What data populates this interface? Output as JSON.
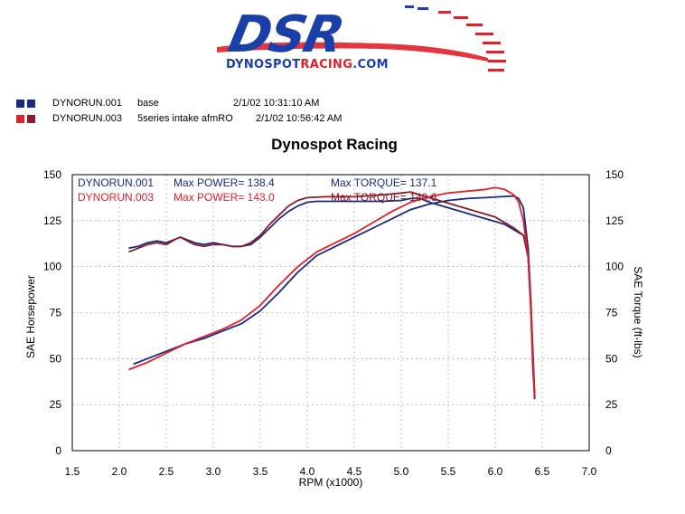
{
  "logo": {
    "main_text": "DSR",
    "sub_text_prefix": "DYNOSPOT",
    "sub_text_accent": "RACING",
    "sub_text_suffix": ".COM",
    "primary_color": "#1a3fa8",
    "accent_color": "#e0202a"
  },
  "legend": [
    {
      "run": "DYNORUN.001",
      "description": "base",
      "timestamp": "2/1/02 10:31:10 AM",
      "colors": [
        "#1a2a80",
        "#1a2a80"
      ]
    },
    {
      "run": "DYNORUN.003",
      "description": "5series intake afmRO",
      "timestamp": "2/1/02 10:56:42 AM",
      "colors": [
        "#e0202a",
        "#8b1a2a"
      ]
    }
  ],
  "chart_data": {
    "type": "line",
    "title": "Dynospot Racing",
    "xlabel": "RPM (x1000)",
    "ylabel": "SAE Horsepower",
    "y2label": "SAE Torque (ft-lbs)",
    "xlim": [
      1.5,
      7.0
    ],
    "ylim": [
      0,
      150
    ],
    "y2lim": [
      0,
      150
    ],
    "x_ticks": [
      "1.5",
      "2.0",
      "2.5",
      "3.0",
      "3.5",
      "4.0",
      "4.5",
      "5.0",
      "5.5",
      "6.0",
      "6.5",
      "7.0"
    ],
    "y_ticks": [
      "0",
      "25",
      "50",
      "75",
      "100",
      "125",
      "150"
    ],
    "y2_ticks": [
      "0",
      "25",
      "50",
      "75",
      "100",
      "125",
      "150"
    ],
    "grid": true,
    "annotations": {
      "run1_label": "DYNORUN.001",
      "run1_power": "Max POWER= 138.4",
      "run1_torque": "Max TORQUE= 137.1",
      "run3_label": "DYNORUN.003",
      "run3_power": "Max POWER= 143.0",
      "run3_torque": "Max TORQUE= 140.6"
    },
    "series": [
      {
        "name": "DYNORUN.001",
        "metric": "torque",
        "color": "#1a2a80",
        "points": [
          [
            2.1,
            110
          ],
          [
            2.2,
            111
          ],
          [
            2.3,
            113
          ],
          [
            2.4,
            114
          ],
          [
            2.5,
            113
          ],
          [
            2.6,
            115
          ],
          [
            2.65,
            116
          ],
          [
            2.8,
            113
          ],
          [
            2.9,
            112
          ],
          [
            3.0,
            113
          ],
          [
            3.1,
            112
          ],
          [
            3.2,
            111
          ],
          [
            3.3,
            111
          ],
          [
            3.4,
            112
          ],
          [
            3.5,
            116
          ],
          [
            3.6,
            121
          ],
          [
            3.7,
            126
          ],
          [
            3.8,
            130
          ],
          [
            3.9,
            133
          ],
          [
            4.0,
            135
          ],
          [
            4.1,
            135.5
          ],
          [
            4.3,
            135.5
          ],
          [
            4.5,
            135.5
          ],
          [
            4.8,
            135.5
          ],
          [
            5.0,
            136
          ],
          [
            5.1,
            137
          ],
          [
            5.2,
            137.1
          ],
          [
            5.3,
            135
          ],
          [
            5.5,
            132
          ],
          [
            5.7,
            129
          ],
          [
            5.9,
            126
          ],
          [
            6.1,
            123
          ],
          [
            6.2,
            120
          ],
          [
            6.3,
            117
          ],
          [
            6.35,
            110
          ],
          [
            6.38,
            80
          ],
          [
            6.4,
            50
          ],
          [
            6.42,
            28
          ]
        ]
      },
      {
        "name": "DYNORUN.001",
        "metric": "power",
        "color": "#1a2a80",
        "points": [
          [
            2.15,
            47
          ],
          [
            2.3,
            50
          ],
          [
            2.5,
            54
          ],
          [
            2.7,
            58
          ],
          [
            2.9,
            61
          ],
          [
            3.1,
            65
          ],
          [
            3.3,
            69
          ],
          [
            3.5,
            76
          ],
          [
            3.7,
            86
          ],
          [
            3.9,
            97
          ],
          [
            4.1,
            106
          ],
          [
            4.3,
            111
          ],
          [
            4.5,
            116
          ],
          [
            4.7,
            121
          ],
          [
            4.9,
            126
          ],
          [
            5.1,
            131
          ],
          [
            5.3,
            134
          ],
          [
            5.5,
            136
          ],
          [
            5.7,
            137
          ],
          [
            5.9,
            137.5
          ],
          [
            6.05,
            138
          ],
          [
            6.2,
            138.4
          ],
          [
            6.25,
            137
          ],
          [
            6.3,
            132
          ],
          [
            6.35,
            110
          ],
          [
            6.38,
            80
          ],
          [
            6.4,
            55
          ],
          [
            6.42,
            30
          ]
        ]
      },
      {
        "name": "DYNORUN.003",
        "metric": "torque",
        "color": "#8b1a2a",
        "points": [
          [
            2.1,
            108
          ],
          [
            2.2,
            110
          ],
          [
            2.3,
            112
          ],
          [
            2.4,
            113
          ],
          [
            2.5,
            112
          ],
          [
            2.6,
            115
          ],
          [
            2.65,
            116
          ],
          [
            2.8,
            112
          ],
          [
            2.9,
            111
          ],
          [
            3.0,
            112
          ],
          [
            3.1,
            112
          ],
          [
            3.2,
            111
          ],
          [
            3.3,
            111
          ],
          [
            3.4,
            113
          ],
          [
            3.5,
            117
          ],
          [
            3.6,
            123
          ],
          [
            3.7,
            128
          ],
          [
            3.8,
            133
          ],
          [
            3.9,
            136
          ],
          [
            4.0,
            137.5
          ],
          [
            4.2,
            138
          ],
          [
            4.5,
            138
          ],
          [
            4.8,
            139
          ],
          [
            5.0,
            140
          ],
          [
            5.1,
            140.6
          ],
          [
            5.2,
            139
          ],
          [
            5.4,
            136
          ],
          [
            5.6,
            133
          ],
          [
            5.8,
            130
          ],
          [
            6.0,
            127
          ],
          [
            6.2,
            121
          ],
          [
            6.3,
            117
          ],
          [
            6.35,
            105
          ],
          [
            6.38,
            75
          ],
          [
            6.4,
            45
          ],
          [
            6.42,
            28
          ]
        ]
      },
      {
        "name": "DYNORUN.003",
        "metric": "power",
        "color": "#e0202a",
        "points": [
          [
            2.1,
            44
          ],
          [
            2.3,
            48
          ],
          [
            2.5,
            53
          ],
          [
            2.7,
            58
          ],
          [
            2.9,
            62
          ],
          [
            3.1,
            66
          ],
          [
            3.3,
            71
          ],
          [
            3.5,
            79
          ],
          [
            3.7,
            90
          ],
          [
            3.9,
            100
          ],
          [
            4.1,
            108
          ],
          [
            4.3,
            113
          ],
          [
            4.5,
            118
          ],
          [
            4.7,
            124
          ],
          [
            4.9,
            130
          ],
          [
            5.1,
            135
          ],
          [
            5.3,
            138
          ],
          [
            5.5,
            140
          ],
          [
            5.7,
            141
          ],
          [
            5.9,
            142
          ],
          [
            6.0,
            143
          ],
          [
            6.1,
            142
          ],
          [
            6.2,
            139
          ],
          [
            6.25,
            135
          ],
          [
            6.3,
            125
          ],
          [
            6.35,
            105
          ],
          [
            6.38,
            78
          ],
          [
            6.4,
            50
          ],
          [
            6.42,
            30
          ]
        ]
      }
    ]
  }
}
